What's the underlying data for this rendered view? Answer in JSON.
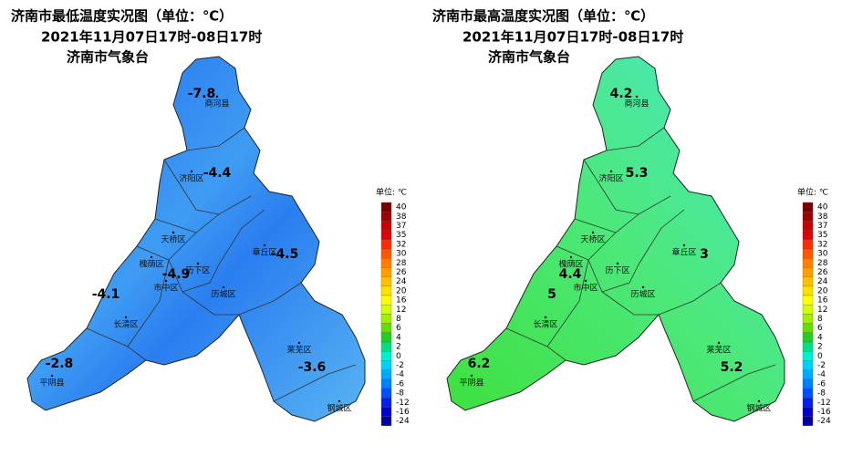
{
  "panels": [
    {
      "title": "济南市最低温度实况图（单位：℃）",
      "date": "2021年11月07日17时-08日17时",
      "agency": "济南市气象台",
      "districts": [
        "商河县",
        "济阳区",
        "天桥区",
        "槐荫区",
        "历下区",
        "市中区",
        "历城区",
        "长清区",
        "平阴县",
        "莱芜区",
        "钢城区",
        "章丘区"
      ],
      "values": [
        -7.8,
        -4.4,
        -4.5,
        -4.9,
        -4.1,
        -2.8,
        -3.6
      ]
    },
    {
      "title": "济南市最高温度实况图（单位：℃）",
      "date": "2021年11月07日17时-08日17时",
      "agency": "济南市气象台",
      "districts": [
        "商河县",
        "济阳区",
        "天桥区",
        "槐荫区",
        "历下区",
        "市中区",
        "历城区",
        "长清区",
        "平阴县",
        "莱芜区",
        "钢城区",
        "章丘区"
      ],
      "values": [
        4.2,
        5.3,
        3,
        4.4,
        5,
        6.2,
        5.2
      ]
    }
  ],
  "legend": {
    "unit": "单位: ℃",
    "ticks": [
      40,
      38,
      37,
      35,
      32,
      30,
      28,
      26,
      24,
      20,
      16,
      12,
      8,
      6,
      4,
      2,
      0,
      -2,
      -4,
      -6,
      -8,
      -12,
      -16,
      -24
    ],
    "colors": [
      "#7a0000",
      "#a00000",
      "#c80000",
      "#e00000",
      "#ff2a00",
      "#ff5500",
      "#ff7f00",
      "#ffa000",
      "#ffc000",
      "#ffe000",
      "#ffff00",
      "#d4ff00",
      "#a0f000",
      "#60e000",
      "#20d020",
      "#00e080",
      "#00f0d0",
      "#00d0ff",
      "#00a8ff",
      "#0080ff",
      "#0050ff",
      "#0020f0",
      "#0000d0",
      "#0000a0"
    ]
  }
}
